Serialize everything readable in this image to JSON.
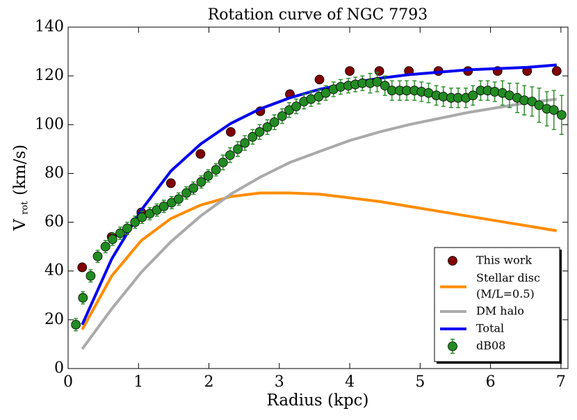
{
  "chart_data": {
    "type": "line",
    "title": "Rotation curve of NGC 7793",
    "x_label": "Radius (kpc)",
    "y_label": {
      "main": "V",
      "sub": "rot",
      "unit": "(km/s)"
    },
    "xlim": [
      0,
      7.1
    ],
    "ylim": [
      0,
      140
    ],
    "xticks": [
      0,
      1,
      2,
      3,
      4,
      5,
      6,
      7
    ],
    "yticks": [
      0,
      20,
      40,
      60,
      80,
      100,
      120,
      140
    ],
    "legend": "lower right",
    "series": [
      {
        "name": "This work",
        "type": "scatter",
        "color": "#800000",
        "x": [
          0.2,
          0.62,
          1.04,
          1.46,
          1.88,
          2.31,
          2.73,
          3.15,
          3.57,
          4.0,
          4.42,
          4.84,
          5.26,
          5.68,
          6.1,
          6.52,
          6.94
        ],
        "values": [
          41.5,
          54,
          64,
          76,
          88,
          97,
          105.5,
          112.5,
          118.5,
          122,
          122,
          122,
          122,
          122,
          122,
          122,
          122
        ]
      },
      {
        "name": "Stellar disc (M/L=0.5)",
        "type": "line",
        "color": "#ff8c00",
        "x": [
          0.2,
          0.62,
          1.04,
          1.46,
          1.88,
          2.31,
          2.73,
          3.15,
          3.57,
          4.0,
          4.42,
          4.84,
          5.26,
          5.68,
          6.1,
          6.52,
          6.94
        ],
        "values": [
          16,
          38,
          52.5,
          61.5,
          67,
          70.5,
          72,
          72,
          71.5,
          70,
          68.5,
          66.5,
          64.5,
          62.5,
          60.5,
          58.5,
          56.5
        ]
      },
      {
        "name": "DM halo",
        "type": "line",
        "color": "#aaaaaa",
        "x": [
          0.2,
          0.62,
          1.04,
          1.46,
          1.88,
          2.31,
          2.73,
          3.15,
          3.57,
          4.0,
          4.42,
          4.84,
          5.26,
          5.68,
          6.1,
          6.52,
          6.94
        ],
        "values": [
          8,
          24.5,
          39.5,
          52,
          62.5,
          71.5,
          78.5,
          84.5,
          89,
          93.5,
          97,
          100,
          102.5,
          105,
          107,
          109,
          110.5
        ]
      },
      {
        "name": "Total",
        "type": "line",
        "color": "#0000ee",
        "x": [
          0.2,
          0.62,
          1.04,
          1.46,
          1.88,
          2.31,
          2.73,
          3.15,
          3.57,
          4.0,
          4.42,
          4.84,
          5.26,
          5.68,
          6.1,
          6.52,
          6.94
        ],
        "values": [
          18,
          45,
          65,
          81,
          92,
          100.5,
          106.5,
          111,
          114.5,
          117,
          119,
          120.5,
          121.5,
          122.5,
          123,
          123.5,
          124.5
        ]
      },
      {
        "name": "dB08",
        "type": "errorbar",
        "color": "#228b22",
        "x": [
          0.11,
          0.21,
          0.32,
          0.42,
          0.53,
          0.63,
          0.74,
          0.84,
          0.95,
          1.05,
          1.16,
          1.26,
          1.36,
          1.47,
          1.57,
          1.68,
          1.78,
          1.89,
          1.99,
          2.1,
          2.2,
          2.3,
          2.41,
          2.51,
          2.62,
          2.72,
          2.83,
          2.93,
          3.04,
          3.14,
          3.24,
          3.35,
          3.45,
          3.56,
          3.66,
          3.77,
          3.87,
          3.98,
          4.08,
          4.18,
          4.29,
          4.39,
          4.5,
          4.6,
          4.71,
          4.81,
          4.92,
          5.02,
          5.12,
          5.23,
          5.33,
          5.44,
          5.54,
          5.65,
          5.75,
          5.86,
          5.96,
          6.06,
          6.17,
          6.27,
          6.38,
          6.48,
          6.59,
          6.69,
          6.8,
          6.9,
          7.01
        ],
        "values": [
          18,
          29,
          38,
          46,
          50,
          53,
          55.5,
          57.5,
          60,
          62,
          63.5,
          65,
          66.5,
          68,
          69.5,
          72,
          74,
          76.5,
          79,
          81.5,
          84.5,
          87.5,
          90,
          92.5,
          95,
          97,
          99,
          101,
          103.5,
          106,
          107.5,
          109.5,
          110.5,
          111.5,
          113,
          114.5,
          115.5,
          116,
          116.5,
          117,
          117,
          117.5,
          116,
          114,
          114,
          114,
          114,
          113.5,
          113,
          112,
          111.5,
          111,
          111,
          111,
          112,
          114,
          114,
          113.5,
          113,
          112,
          111,
          110,
          109.5,
          108,
          106.5,
          106,
          104
        ],
        "errors": [
          2.5,
          2.5,
          2.5,
          2.5,
          2.5,
          2.5,
          2.5,
          2.5,
          2.5,
          2.5,
          2.5,
          2.5,
          2.5,
          2.5,
          2.5,
          2.5,
          2.5,
          2.5,
          2.5,
          2.5,
          3,
          3,
          3,
          3,
          3,
          3,
          3,
          3,
          3,
          3,
          3,
          3,
          3,
          3,
          3,
          3,
          3,
          3,
          3,
          3,
          4,
          4,
          4,
          4,
          4,
          4,
          4,
          4,
          4,
          4,
          4,
          4,
          4,
          4,
          4,
          4,
          4,
          4,
          5,
          5,
          6,
          6,
          6,
          7,
          7,
          8,
          8
        ]
      }
    ]
  }
}
